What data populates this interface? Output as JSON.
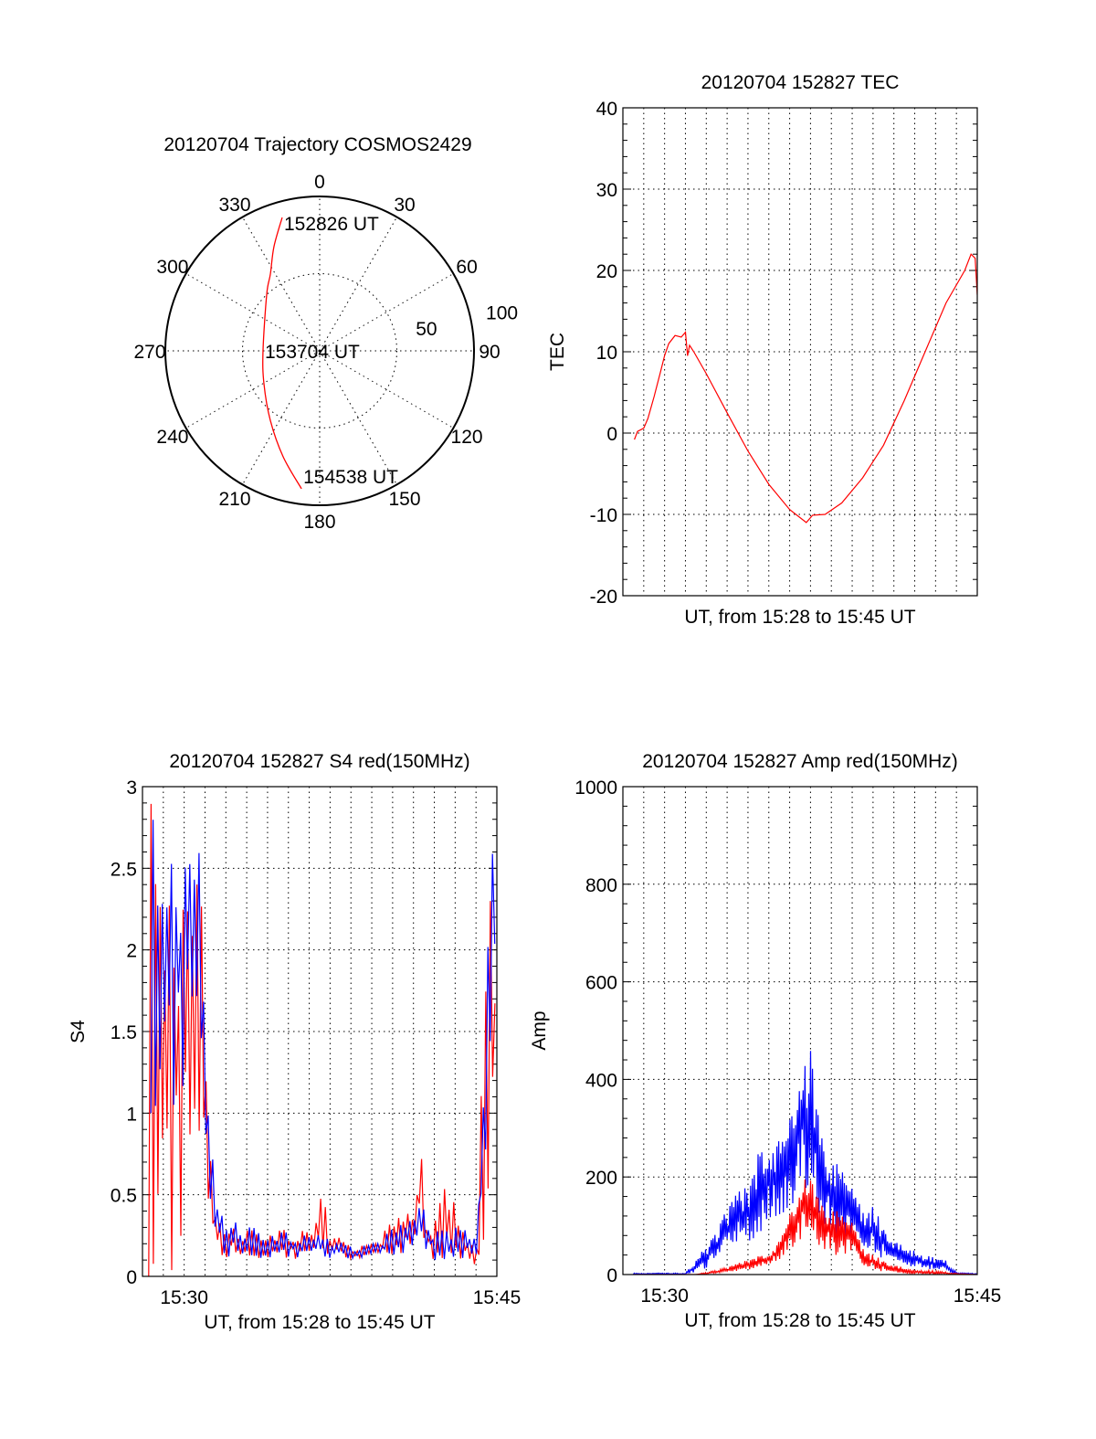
{
  "chart_data": [
    {
      "type": "polar",
      "title": "20120704 Trajectory COSMOS2429",
      "angle_ticks": [
        "0",
        "30",
        "60",
        "90",
        "120",
        "150",
        "180",
        "210",
        "240",
        "270",
        "300",
        "330"
      ],
      "radial_ticks": [
        "50",
        "100"
      ],
      "rlim": [
        0,
        100
      ],
      "trajectory": {
        "color": "#ff0000",
        "az": [
          344.3,
          336.3,
          327.3,
          316.9,
          270.0,
          239.5,
          215.4,
          199.0,
          187.5
        ],
        "r": [
          89.7,
          73.7,
          59.1,
          50.2,
          36.7,
          41.9,
          55.2,
          72.6,
          90.1
        ]
      },
      "annotations": [
        {
          "text": "152826 UT",
          "point_index": 0
        },
        {
          "text": "153704 UT",
          "point_index": 4
        },
        {
          "text": "154538 UT",
          "point_index": 8
        }
      ]
    },
    {
      "type": "line",
      "title": "20120704 152827 TEC",
      "xlabel": "UT, from 15:28 to 15:45 UT",
      "ylabel": "TEC",
      "x_units": "minutes after 15:28",
      "xlim": [
        0,
        17
      ],
      "ylim": [
        -20,
        40
      ],
      "yticks": [
        "-20",
        "-10",
        "0",
        "10",
        "20",
        "30",
        "40"
      ],
      "xticks": [],
      "grid": true,
      "series": [
        {
          "name": "TEC",
          "color": "#ff0000",
          "x": [
            0.55,
            0.7,
            1.0,
            1.2,
            1.5,
            1.8,
            2.0,
            2.2,
            2.5,
            2.8,
            3.0,
            3.1,
            3.2,
            3.4,
            4.0,
            5.0,
            6.0,
            7.0,
            8.0,
            8.8,
            9.1,
            9.7,
            10.5,
            11.5,
            12.5,
            13.5,
            14.5,
            15.5,
            16.4,
            16.7,
            16.9,
            17.0
          ],
          "y": [
            -0.8,
            0.2,
            0.6,
            1.8,
            4.5,
            7.5,
            9.5,
            11.0,
            12.0,
            11.8,
            12.4,
            9.5,
            10.8,
            10.0,
            7.3,
            2.5,
            -2.2,
            -6.3,
            -9.4,
            -11.0,
            -10.1,
            -10.0,
            -8.6,
            -5.5,
            -1.5,
            4.0,
            10.0,
            16.0,
            20.0,
            22.0,
            21.5,
            17.0
          ]
        }
      ]
    },
    {
      "type": "line",
      "title": "20120704 152827 S4 red(150MHz)",
      "xlabel": "UT, from 15:28 to 15:45 UT",
      "ylabel": "S4",
      "x_units": "minutes after 15:28",
      "xlim": [
        0,
        17
      ],
      "ylim": [
        0,
        3
      ],
      "yticks": [
        "0",
        "0.5",
        "1",
        "1.5",
        "2",
        "2.5",
        "3"
      ],
      "xticks": [
        {
          "value": 2,
          "label": "15:30"
        },
        {
          "value": 17,
          "label": "15:45"
        }
      ],
      "grid": true,
      "series": [
        {
          "name": "red",
          "color": "#ff0000",
          "x": [
            0.3,
            0.8,
            1.6,
            2.4,
            2.8,
            3.0,
            3.2,
            3.5,
            4.0,
            6.0,
            8.3,
            8.6,
            9.0,
            10.0,
            11.0,
            12.0,
            13.0,
            13.3,
            13.6,
            14.0,
            14.6,
            15.2,
            16.0,
            16.2,
            16.3,
            17.0
          ],
          "lo": [
            0,
            0,
            0,
            0,
            0,
            0.5,
            0.3,
            0.1,
            0.1,
            0.1,
            0.1,
            0.15,
            0.1,
            0.08,
            0.1,
            0.1,
            0.15,
            0.3,
            0.15,
            0.1,
            0.1,
            0.1,
            0.05,
            0.05,
            0,
            0
          ],
          "hi": [
            3,
            3,
            3,
            3,
            3,
            1.5,
            0.8,
            0.4,
            0.3,
            0.3,
            0.3,
            0.6,
            0.3,
            0.2,
            0.2,
            0.35,
            0.4,
            0.9,
            0.3,
            0.35,
            0.65,
            0.3,
            0.25,
            0.25,
            3,
            3
          ]
        },
        {
          "name": "blue",
          "color": "#0000ff",
          "x": [
            0.4,
            0.8,
            1.2,
            1.6,
            2.0,
            2.4,
            2.8,
            3.0,
            3.2,
            3.5,
            4.0,
            6.0,
            8.6,
            9.0,
            10.0,
            11.0,
            12.0,
            13.0,
            13.3,
            13.6,
            14.0,
            15.2,
            16.0,
            16.3,
            16.6,
            17.0
          ],
          "lo": [
            1.0,
            1.0,
            1.1,
            1.0,
            1.0,
            1.2,
            0.9,
            0.7,
            0.4,
            0.15,
            0.1,
            0.1,
            0.12,
            0.1,
            0.08,
            0.1,
            0.1,
            0.15,
            0.2,
            0.15,
            0.1,
            0.1,
            0.1,
            0.3,
            1.0,
            1.5
          ],
          "hi": [
            3.0,
            2.5,
            3.0,
            3.0,
            3.0,
            3.0,
            3.0,
            1.3,
            1.0,
            0.5,
            0.35,
            0.3,
            0.25,
            0.25,
            0.2,
            0.2,
            0.3,
            0.35,
            0.6,
            0.3,
            0.3,
            0.3,
            0.3,
            1.0,
            3.0,
            3.0
          ]
        }
      ]
    },
    {
      "type": "line",
      "title": "20120704 152827 Amp red(150MHz)",
      "xlabel": "UT, from 15:28 to 15:45 UT",
      "ylabel": "Amp",
      "x_units": "minutes after 15:28",
      "xlim": [
        0,
        17
      ],
      "ylim": [
        0,
        1000
      ],
      "yticks": [
        "0",
        "200",
        "400",
        "600",
        "800",
        "1000"
      ],
      "xticks": [
        {
          "value": 2,
          "label": "15:30"
        },
        {
          "value": 17,
          "label": "15:45"
        }
      ],
      "grid": true,
      "series": [
        {
          "name": "blue",
          "color": "#0000ff",
          "x": [
            0.5,
            3.0,
            3.5,
            4.0,
            4.5,
            5.0,
            5.5,
            6.0,
            6.5,
            7.0,
            7.5,
            8.0,
            8.5,
            9.0,
            9.5,
            10.0,
            10.5,
            11.0,
            11.5,
            12.0,
            12.5,
            13.0,
            13.5,
            14.0,
            14.5,
            15.0,
            15.5,
            16.0,
            17.0
          ],
          "lo": [
            0,
            0,
            5,
            10,
            20,
            40,
            60,
            70,
            70,
            100,
            120,
            120,
            200,
            160,
            100,
            80,
            70,
            60,
            50,
            40,
            30,
            25,
            20,
            15,
            10,
            10,
            5,
            0,
            0
          ],
          "hi": [
            3,
            3,
            30,
            60,
            100,
            140,
            170,
            180,
            250,
            300,
            280,
            340,
            420,
            480,
            300,
            240,
            230,
            200,
            140,
            140,
            100,
            70,
            60,
            50,
            40,
            35,
            30,
            5,
            2
          ]
        },
        {
          "name": "red",
          "color": "#ff0000",
          "x": [
            0.5,
            3.5,
            4.0,
            5.0,
            6.0,
            7.0,
            7.5,
            8.0,
            8.5,
            8.8,
            9.2,
            9.5,
            10.0,
            10.5,
            11.0,
            11.5,
            12.0,
            12.5,
            13.0,
            14.0,
            15.0,
            16.0,
            17.0
          ],
          "lo": [
            0,
            0,
            0,
            3,
            10,
            20,
            30,
            50,
            70,
            100,
            60,
            50,
            40,
            40,
            40,
            15,
            10,
            5,
            2,
            1,
            0,
            0,
            0
          ],
          "hi": [
            0,
            0,
            5,
            15,
            30,
            45,
            70,
            130,
            180,
            210,
            190,
            150,
            140,
            130,
            120,
            60,
            40,
            30,
            20,
            10,
            8,
            3,
            0
          ]
        }
      ]
    }
  ]
}
